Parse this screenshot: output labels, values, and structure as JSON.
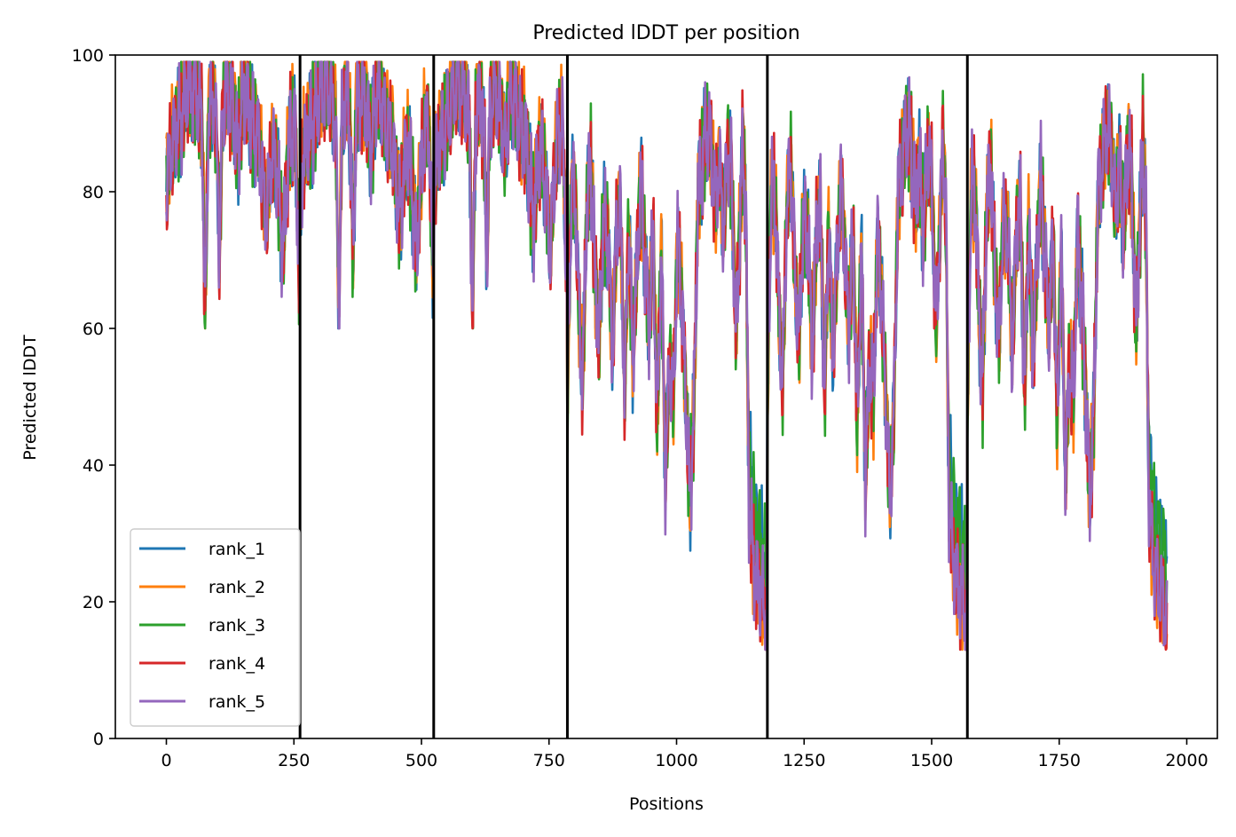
{
  "chart_data": {
    "type": "line",
    "title": "Predicted lDDT per position",
    "xlabel": "Positions",
    "ylabel": "Predicted lDDT",
    "xlim": [
      -100,
      2060
    ],
    "ylim": [
      0,
      100
    ],
    "xticks": [
      0,
      250,
      500,
      750,
      1000,
      1250,
      1500,
      1750,
      2000
    ],
    "yticks": [
      0,
      20,
      40,
      60,
      80,
      100
    ],
    "grid": false,
    "legend_position": "lower-left",
    "chain_boundaries": [
      262,
      524,
      786,
      1178,
      1570
    ],
    "chain_lengths": [
      262,
      262,
      262,
      392,
      392,
      392
    ],
    "series": [
      {
        "name": "rank_1",
        "color": "#1f77b4"
      },
      {
        "name": "rank_2",
        "color": "#ff7f0e"
      },
      {
        "name": "rank_3",
        "color": "#2ca02c"
      },
      {
        "name": "rank_4",
        "color": "#d62728"
      },
      {
        "name": "rank_5",
        "color": "#9467bd"
      }
    ],
    "profile_a": [
      [
        0,
        80
      ],
      [
        8,
        86
      ],
      [
        16,
        88
      ],
      [
        24,
        90
      ],
      [
        32,
        92
      ],
      [
        40,
        95
      ],
      [
        50,
        96
      ],
      [
        60,
        94
      ],
      [
        70,
        90
      ],
      [
        76,
        61
      ],
      [
        82,
        90
      ],
      [
        92,
        95
      ],
      [
        100,
        85
      ],
      [
        104,
        69
      ],
      [
        110,
        92
      ],
      [
        120,
        95
      ],
      [
        130,
        92
      ],
      [
        140,
        86
      ],
      [
        150,
        95
      ],
      [
        160,
        93
      ],
      [
        170,
        89
      ],
      [
        180,
        88
      ],
      [
        190,
        80
      ],
      [
        196,
        76
      ],
      [
        204,
        84
      ],
      [
        212,
        86
      ],
      [
        220,
        80
      ],
      [
        228,
        71
      ],
      [
        234,
        79
      ],
      [
        242,
        88
      ],
      [
        252,
        90
      ],
      [
        260,
        69
      ]
    ],
    "profile_b": [
      [
        0,
        49
      ],
      [
        8,
        82
      ],
      [
        16,
        78
      ],
      [
        24,
        60
      ],
      [
        30,
        52
      ],
      [
        38,
        78
      ],
      [
        46,
        84
      ],
      [
        54,
        68
      ],
      [
        62,
        58
      ],
      [
        70,
        76
      ],
      [
        80,
        73
      ],
      [
        88,
        56
      ],
      [
        96,
        74
      ],
      [
        104,
        78
      ],
      [
        112,
        50
      ],
      [
        120,
        75
      ],
      [
        128,
        56
      ],
      [
        136,
        69
      ],
      [
        144,
        82
      ],
      [
        152,
        70
      ],
      [
        160,
        60
      ],
      [
        168,
        74
      ],
      [
        176,
        46
      ],
      [
        184,
        72
      ],
      [
        192,
        38
      ],
      [
        200,
        55
      ],
      [
        208,
        50
      ],
      [
        216,
        74
      ],
      [
        224,
        64
      ],
      [
        232,
        50
      ],
      [
        240,
        35
      ],
      [
        248,
        48
      ],
      [
        256,
        80
      ],
      [
        264,
        84
      ],
      [
        272,
        89
      ],
      [
        280,
        88
      ],
      [
        290,
        78
      ],
      [
        298,
        84
      ],
      [
        306,
        74
      ],
      [
        314,
        86
      ],
      [
        322,
        82
      ],
      [
        330,
        60
      ],
      [
        338,
        74
      ],
      [
        344,
        88
      ],
      [
        350,
        76
      ],
      [
        356,
        34
      ],
      [
        362,
        28
      ],
      [
        368,
        24
      ],
      [
        376,
        22
      ],
      [
        384,
        20
      ],
      [
        391,
        16
      ]
    ]
  }
}
